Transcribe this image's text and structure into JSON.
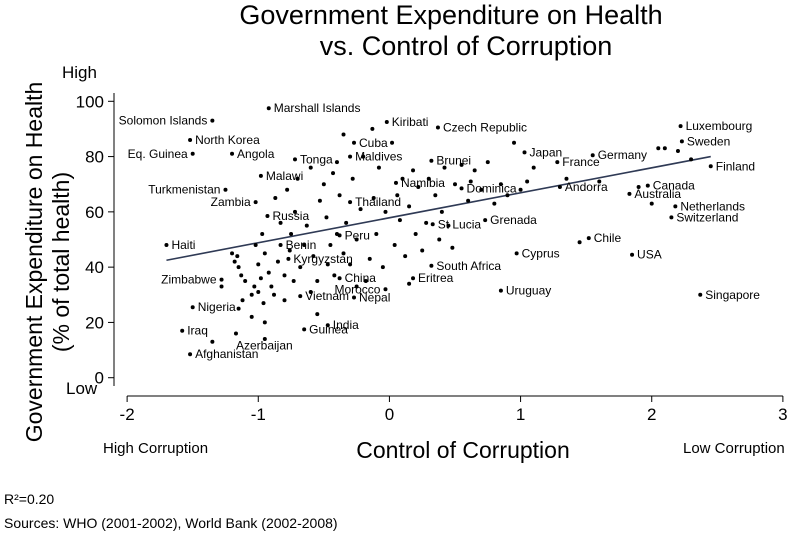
{
  "chart_data": {
    "type": "scatter",
    "title_lines": [
      "Government Expenditure on Health",
      "vs. Control of Corruption"
    ],
    "xlabel": "Control of Corruption",
    "ylabel_lines": [
      "Government Expenditure on Health",
      "(% of total health)"
    ],
    "xlim": [
      -2.1,
      3.1
    ],
    "ylim": [
      -3,
      103
    ],
    "x_ticks": [
      -2,
      -1,
      0,
      1,
      2,
      3
    ],
    "y_ticks": [
      0,
      20,
      40,
      60,
      80,
      100
    ],
    "y_high_label": "High",
    "y_low_label": "Low",
    "x_left_label": "High Corruption",
    "x_right_label": "Low Corruption",
    "grid": false,
    "colors": {
      "points": "#000000",
      "fit_line": "#2f3a55"
    },
    "fit_line": {
      "x": [
        -1.7,
        2.45
      ],
      "y": [
        42.5,
        80
      ]
    },
    "labeled_points": [
      {
        "name": "Solomon Islands",
        "x": -1.35,
        "y": 93,
        "side": "left"
      },
      {
        "name": "Marshall Islands",
        "x": -0.92,
        "y": 97.5,
        "side": "right"
      },
      {
        "name": "North Korea",
        "x": -1.52,
        "y": 86,
        "side": "right"
      },
      {
        "name": "Kiribati",
        "x": -0.02,
        "y": 92.5,
        "side": "right"
      },
      {
        "name": "Czech Republic",
        "x": 0.37,
        "y": 90.5,
        "side": "right"
      },
      {
        "name": "Luxembourg",
        "x": 2.22,
        "y": 91,
        "side": "right"
      },
      {
        "name": "Sweden",
        "x": 2.23,
        "y": 85.5,
        "side": "right"
      },
      {
        "name": "Cuba",
        "x": -0.27,
        "y": 85,
        "side": "right"
      },
      {
        "name": "Eq. Guinea",
        "x": -1.5,
        "y": 81,
        "side": "left"
      },
      {
        "name": "Angola",
        "x": -1.2,
        "y": 81,
        "side": "right"
      },
      {
        "name": "Maldives",
        "x": -0.3,
        "y": 80,
        "side": "right"
      },
      {
        "name": "Tonga",
        "x": -0.72,
        "y": 79,
        "side": "right"
      },
      {
        "name": "Japan",
        "x": 1.03,
        "y": 81.5,
        "side": "right"
      },
      {
        "name": "Germany",
        "x": 1.55,
        "y": 80.5,
        "side": "right"
      },
      {
        "name": "Brunei",
        "x": 0.32,
        "y": 78.5,
        "side": "right"
      },
      {
        "name": "France",
        "x": 1.28,
        "y": 78,
        "side": "right"
      },
      {
        "name": "Finland",
        "x": 2.45,
        "y": 76.5,
        "side": "right"
      },
      {
        "name": "Malawi",
        "x": -0.98,
        "y": 73,
        "side": "right"
      },
      {
        "name": "Namibia",
        "x": 0.05,
        "y": 70.5,
        "side": "right"
      },
      {
        "name": "Dominica",
        "x": 0.55,
        "y": 68.5,
        "side": "right"
      },
      {
        "name": "Andorra",
        "x": 1.3,
        "y": 69,
        "side": "right"
      },
      {
        "name": "Canada",
        "x": 1.97,
        "y": 69.5,
        "side": "right"
      },
      {
        "name": "Turkmenistan",
        "x": -1.25,
        "y": 68,
        "side": "left"
      },
      {
        "name": "Australia",
        "x": 1.83,
        "y": 66.5,
        "side": "right"
      },
      {
        "name": "Zambia",
        "x": -1.02,
        "y": 63.5,
        "side": "left"
      },
      {
        "name": "Thailand",
        "x": -0.3,
        "y": 63.5,
        "side": "right"
      },
      {
        "name": "Netherlands",
        "x": 2.18,
        "y": 62,
        "side": "right"
      },
      {
        "name": "Russia",
        "x": -0.93,
        "y": 58.5,
        "side": "right"
      },
      {
        "name": "Switzerland",
        "x": 2.15,
        "y": 58,
        "side": "right"
      },
      {
        "name": "Grenada",
        "x": 0.73,
        "y": 57,
        "side": "right"
      },
      {
        "name": "St Lucia",
        "x": 0.33,
        "y": 55.5,
        "side": "right"
      },
      {
        "name": "Peru",
        "x": -0.38,
        "y": 51.5,
        "side": "right"
      },
      {
        "name": "Chile",
        "x": 1.52,
        "y": 50.5,
        "side": "right"
      },
      {
        "name": "Haiti",
        "x": -1.7,
        "y": 48,
        "side": "right"
      },
      {
        "name": "Benin",
        "x": -0.83,
        "y": 48,
        "side": "right"
      },
      {
        "name": "Cyprus",
        "x": 0.97,
        "y": 45,
        "side": "right"
      },
      {
        "name": "USA",
        "x": 1.85,
        "y": 44.5,
        "side": "right"
      },
      {
        "name": "Kyrgyzstan",
        "x": -0.77,
        "y": 43,
        "side": "right"
      },
      {
        "name": "South Africa",
        "x": 0.32,
        "y": 40.5,
        "side": "right"
      },
      {
        "name": "Zimbabwe",
        "x": -1.28,
        "y": 35.5,
        "side": "left"
      },
      {
        "name": "China",
        "x": -0.38,
        "y": 36,
        "side": "right"
      },
      {
        "name": "Eritrea",
        "x": 0.18,
        "y": 36,
        "side": "right"
      },
      {
        "name": "Morocco",
        "x": -0.03,
        "y": 32,
        "side": "left"
      },
      {
        "name": "Uruguay",
        "x": 0.85,
        "y": 31.5,
        "side": "right"
      },
      {
        "name": "Vietnam",
        "x": -0.68,
        "y": 29.5,
        "side": "right"
      },
      {
        "name": "Nepal",
        "x": -0.27,
        "y": 29,
        "side": "right"
      },
      {
        "name": "Singapore",
        "x": 2.37,
        "y": 30,
        "side": "right"
      },
      {
        "name": "Nigeria",
        "x": -1.5,
        "y": 25.5,
        "side": "right"
      },
      {
        "name": "India",
        "x": -0.47,
        "y": 19,
        "side": "right"
      },
      {
        "name": "Guinea",
        "x": -0.65,
        "y": 17.5,
        "side": "right"
      },
      {
        "name": "Iraq",
        "x": -1.58,
        "y": 17,
        "side": "right"
      },
      {
        "name": "Azerbaijan",
        "x": -1.17,
        "y": 16,
        "side": "below"
      },
      {
        "name": "Afghanistan",
        "x": -1.52,
        "y": 8.5,
        "side": "right"
      }
    ],
    "points": [
      [
        -1.28,
        33
      ],
      [
        -1.2,
        45
      ],
      [
        -1.18,
        42
      ],
      [
        -1.16,
        44
      ],
      [
        -1.15,
        40
      ],
      [
        -1.13,
        37
      ],
      [
        -1.12,
        28
      ],
      [
        -1.1,
        35
      ],
      [
        -1.05,
        30
      ],
      [
        -1.05,
        22
      ],
      [
        -1.03,
        33
      ],
      [
        -1.02,
        48
      ],
      [
        -1.0,
        41
      ],
      [
        -1.0,
        31
      ],
      [
        -0.98,
        36
      ],
      [
        -0.97,
        52
      ],
      [
        -0.96,
        27
      ],
      [
        -0.95,
        45
      ],
      [
        -0.95,
        20
      ],
      [
        -0.92,
        38
      ],
      [
        -0.9,
        33
      ],
      [
        -0.88,
        30
      ],
      [
        -0.87,
        65
      ],
      [
        -0.85,
        42
      ],
      [
        -0.83,
        56
      ],
      [
        -0.8,
        37
      ],
      [
        -0.8,
        28
      ],
      [
        -0.78,
        68
      ],
      [
        -0.76,
        46
      ],
      [
        -0.75,
        52
      ],
      [
        -0.73,
        35
      ],
      [
        -0.72,
        60
      ],
      [
        -0.7,
        72
      ],
      [
        -0.68,
        40
      ],
      [
        -0.65,
        48
      ],
      [
        -0.63,
        55
      ],
      [
        -0.6,
        76
      ],
      [
        -0.58,
        44
      ],
      [
        -0.55,
        35
      ],
      [
        -0.53,
        64
      ],
      [
        -0.5,
        70
      ],
      [
        -0.48,
        58
      ],
      [
        -0.47,
        41
      ],
      [
        -0.45,
        48
      ],
      [
        -0.43,
        74
      ],
      [
        -0.42,
        37
      ],
      [
        -0.4,
        78
      ],
      [
        -0.4,
        52
      ],
      [
        -0.38,
        66
      ],
      [
        -0.35,
        88
      ],
      [
        -0.35,
        45
      ],
      [
        -0.33,
        56
      ],
      [
        -0.3,
        41
      ],
      [
        -0.28,
        72
      ],
      [
        -0.25,
        50
      ],
      [
        -0.22,
        61
      ],
      [
        -0.2,
        80
      ],
      [
        -0.18,
        35
      ],
      [
        -0.15,
        43
      ],
      [
        -0.13,
        90
      ],
      [
        -0.12,
        65
      ],
      [
        -0.1,
        52
      ],
      [
        -0.08,
        76
      ],
      [
        -0.05,
        40
      ],
      [
        -0.03,
        60
      ],
      [
        0.02,
        85
      ],
      [
        0.04,
        48
      ],
      [
        0.06,
        66
      ],
      [
        0.08,
        57
      ],
      [
        0.1,
        72
      ],
      [
        0.12,
        44
      ],
      [
        0.15,
        62
      ],
      [
        0.18,
        75
      ],
      [
        0.2,
        52
      ],
      [
        0.22,
        69
      ],
      [
        0.25,
        46
      ],
      [
        0.28,
        56
      ],
      [
        0.3,
        72
      ],
      [
        0.35,
        66
      ],
      [
        0.38,
        50
      ],
      [
        0.4,
        60
      ],
      [
        0.42,
        76
      ],
      [
        0.45,
        55
      ],
      [
        0.48,
        47
      ],
      [
        0.5,
        70
      ],
      [
        0.55,
        77
      ],
      [
        0.6,
        64
      ],
      [
        0.62,
        71
      ],
      [
        0.65,
        75
      ],
      [
        0.7,
        68
      ],
      [
        0.75,
        78
      ],
      [
        0.8,
        63
      ],
      [
        0.85,
        70
      ],
      [
        0.9,
        66
      ],
      [
        0.95,
        85
      ],
      [
        1.0,
        68
      ],
      [
        1.05,
        71
      ],
      [
        1.1,
        76
      ],
      [
        1.35,
        72
      ],
      [
        1.45,
        49
      ],
      [
        1.6,
        71
      ],
      [
        1.9,
        69
      ],
      [
        2.0,
        63
      ],
      [
        2.05,
        83
      ],
      [
        2.1,
        83
      ],
      [
        2.2,
        82
      ],
      [
        2.3,
        79
      ],
      [
        -0.6,
        31
      ],
      [
        -0.25,
        33
      ],
      [
        0.15,
        34
      ],
      [
        -1.35,
        13
      ],
      [
        -0.95,
        14
      ],
      [
        -1.15,
        25
      ],
      [
        -0.55,
        23
      ]
    ]
  },
  "annotations": {
    "r_squared": "R²=0.20",
    "sources": "Sources: WHO (2001-2002), World Bank (2002-2008)"
  }
}
